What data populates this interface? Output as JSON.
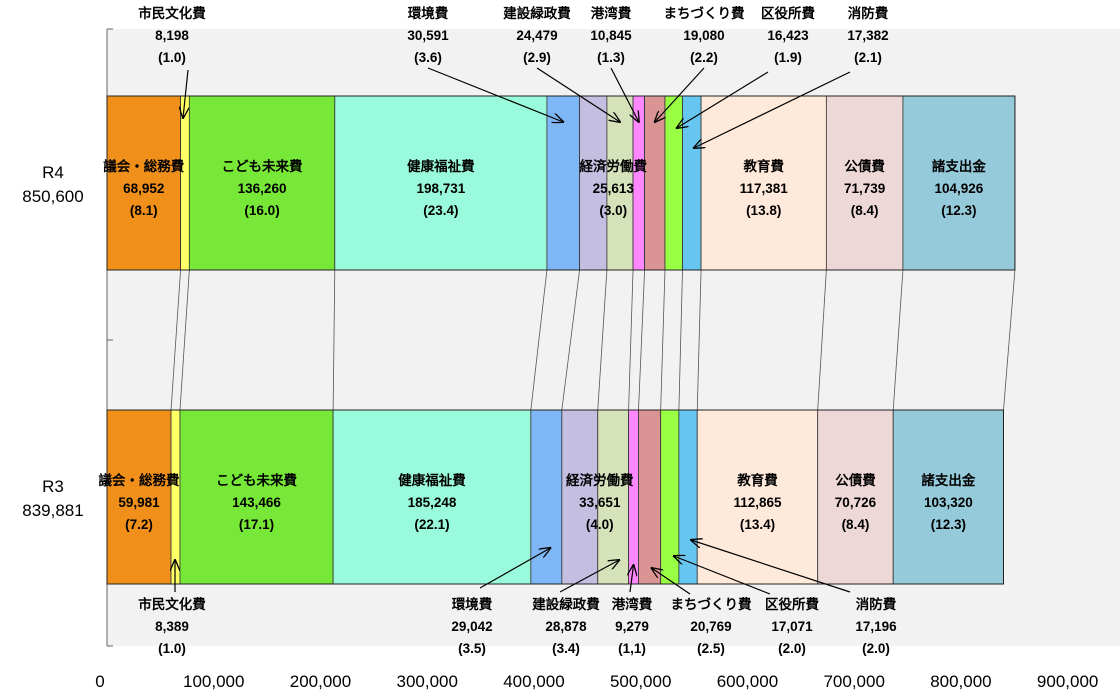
{
  "chart_data": {
    "type": "bar",
    "orientation": "horizontal",
    "stacked": true,
    "xlim": [
      0,
      1000000
    ],
    "x_ticks": [
      "0",
      "100,000",
      "200,000",
      "300,000",
      "400,000",
      "500,000",
      "600,000",
      "700,000",
      "800,000",
      "900,000"
    ],
    "x_tick_values": [
      0,
      100000,
      200000,
      300000,
      400000,
      500000,
      600000,
      700000,
      800000,
      900000
    ],
    "category_names": [
      "議会・総務費",
      "市民文化費",
      "こども未来費",
      "健康福祉費",
      "環境費",
      "経済労働費",
      "建設緑政費",
      "港湾費",
      "まちづくり費",
      "区役所費",
      "消防費",
      "教育費",
      "公債費",
      "諸支出金"
    ],
    "colors": [
      "#F0901A",
      "#FFFF66",
      "#77E838",
      "#99FADC",
      "#7FB6F5",
      "#C4BEE0",
      "#D6E2BA",
      "#FF88FF",
      "#DB9494",
      "#99FF44",
      "#66C6F0",
      "#FFE9DB",
      "#EED7D7",
      "#95CADA"
    ],
    "bars": [
      {
        "label": "R4",
        "total": "850,600",
        "segments": [
          {
            "name": "議会・総務費",
            "value": 68952,
            "value_label": "68,952",
            "pct": "(8.1)"
          },
          {
            "name": "市民文化費",
            "value": 8198,
            "value_label": "8,198",
            "pct": "(1.0)"
          },
          {
            "name": "こども未来費",
            "value": 136260,
            "value_label": "136,260",
            "pct": "(16.0)"
          },
          {
            "name": "健康福祉費",
            "value": 198731,
            "value_label": "198,731",
            "pct": "(23.4)"
          },
          {
            "name": "環境費",
            "value": 30591,
            "value_label": "30,591",
            "pct": "(3.6)"
          },
          {
            "name": "経済労働費",
            "value": 25613,
            "value_label": "25,613",
            "pct": "(3.0)"
          },
          {
            "name": "建設緑政費",
            "value": 24479,
            "value_label": "24,479",
            "pct": "(2.9)"
          },
          {
            "name": "港湾費",
            "value": 10845,
            "value_label": "10,845",
            "pct": "(1.3)"
          },
          {
            "name": "まちづくり費",
            "value": 19080,
            "value_label": "19,080",
            "pct": "(2.2)"
          },
          {
            "name": "区役所費",
            "value": 16423,
            "value_label": "16,423",
            "pct": "(1.9)"
          },
          {
            "name": "消防費",
            "value": 17382,
            "value_label": "17,382",
            "pct": "(2.1)"
          },
          {
            "name": "教育費",
            "value": 117381,
            "value_label": "117,381",
            "pct": "(13.8)"
          },
          {
            "name": "公債費",
            "value": 71739,
            "value_label": "71,739",
            "pct": "(8.4)"
          },
          {
            "name": "諸支出金",
            "value": 104926,
            "value_label": "104,926",
            "pct": "(12.3)"
          }
        ]
      },
      {
        "label": "R3",
        "total": "839,881",
        "segments": [
          {
            "name": "議会・総務費",
            "value": 59981,
            "value_label": "59,981",
            "pct": "(7.2)"
          },
          {
            "name": "市民文化費",
            "value": 8389,
            "value_label": "8,389",
            "pct": "(1.0)"
          },
          {
            "name": "こども未来費",
            "value": 143466,
            "value_label": "143,466",
            "pct": "(17.1)"
          },
          {
            "name": "健康福祉費",
            "value": 185248,
            "value_label": "185,248",
            "pct": "(22.1)"
          },
          {
            "name": "環境費",
            "value": 29042,
            "value_label": "29,042",
            "pct": "(3.5)"
          },
          {
            "name": "経済労働費",
            "value": 33651,
            "value_label": "33,651",
            "pct": "(4.0)"
          },
          {
            "name": "建設緑政費",
            "value": 28878,
            "value_label": "28,878",
            "pct": "(3.4)"
          },
          {
            "name": "港湾費",
            "value": 9279,
            "value_label": "9,279",
            "pct": "(1,1)"
          },
          {
            "name": "まちづくり費",
            "value": 20769,
            "value_label": "20,769",
            "pct": "(2.5)"
          },
          {
            "name": "区役所費",
            "value": 17071,
            "value_label": "17,071",
            "pct": "(2.0)"
          },
          {
            "name": "消防費",
            "value": 17196,
            "value_label": "17,196",
            "pct": "(2.0)"
          },
          {
            "name": "教育費",
            "value": 112865,
            "value_label": "112,865",
            "pct": "(13.4)"
          },
          {
            "name": "公債費",
            "value": 70726,
            "value_label": "70,726",
            "pct": "(8.4)"
          },
          {
            "name": "諸支出金",
            "value": 103320,
            "value_label": "103,320",
            "pct": "(12.3)"
          }
        ]
      }
    ],
    "grid": false
  }
}
